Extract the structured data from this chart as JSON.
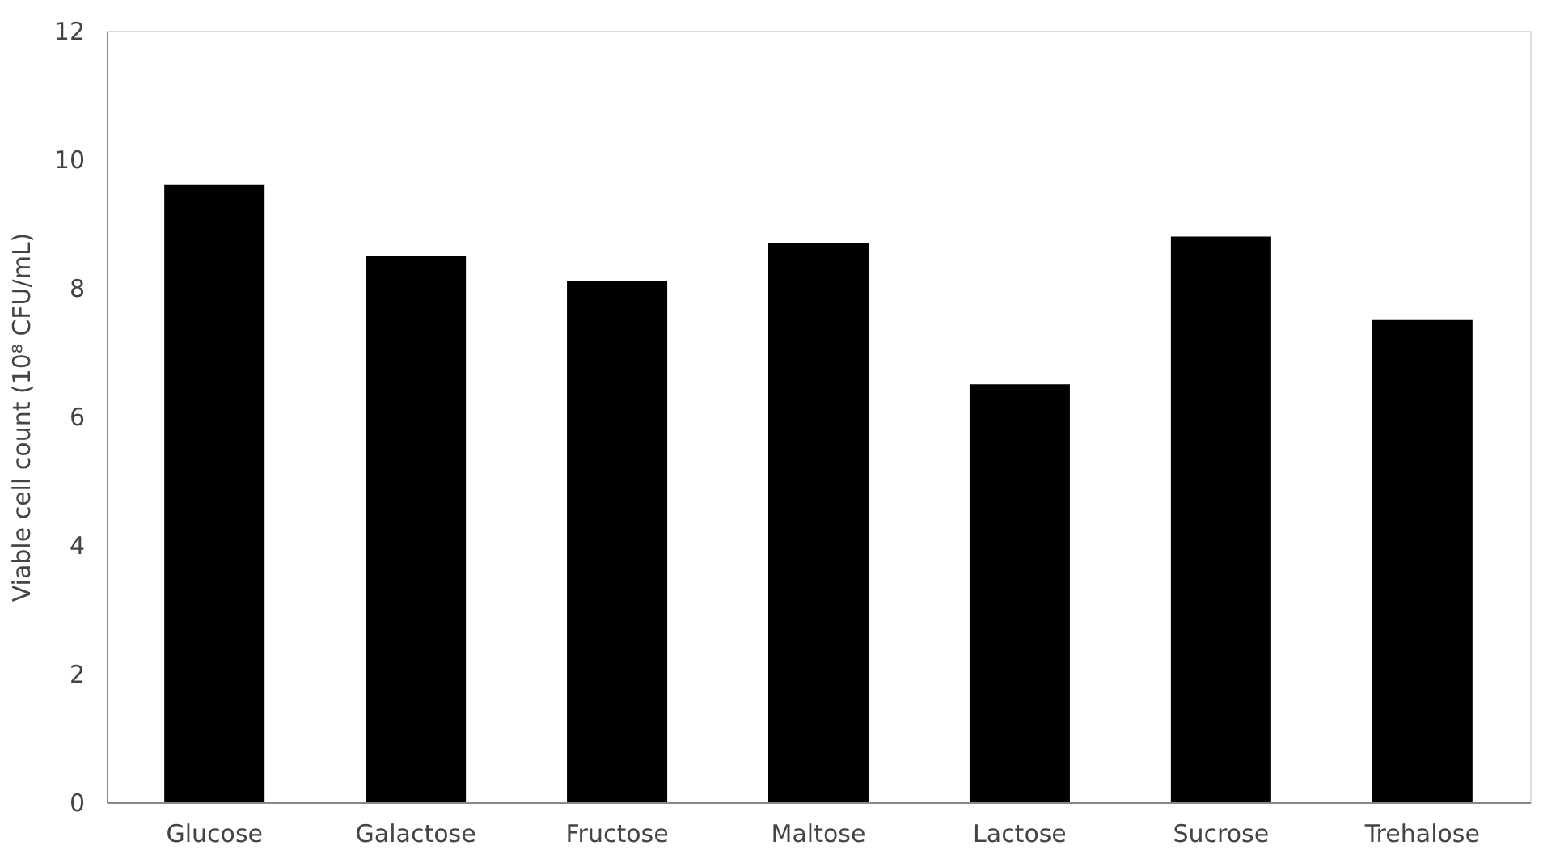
{
  "chart_data": {
    "type": "bar",
    "ylabel": "Viable cell count (10⁸ CFU/mL)",
    "categories": [
      "Glucose",
      "Galactose",
      "Fructose",
      "Maltose",
      "Lactose",
      "Sucrose",
      "Trehalose"
    ],
    "values": [
      9.6,
      8.5,
      8.1,
      8.7,
      6.5,
      8.8,
      7.5
    ],
    "color": "#000000",
    "ylim": [
      0,
      12
    ],
    "yticks": [
      0,
      2,
      4,
      6,
      8,
      10,
      12
    ],
    "grid": false
  }
}
